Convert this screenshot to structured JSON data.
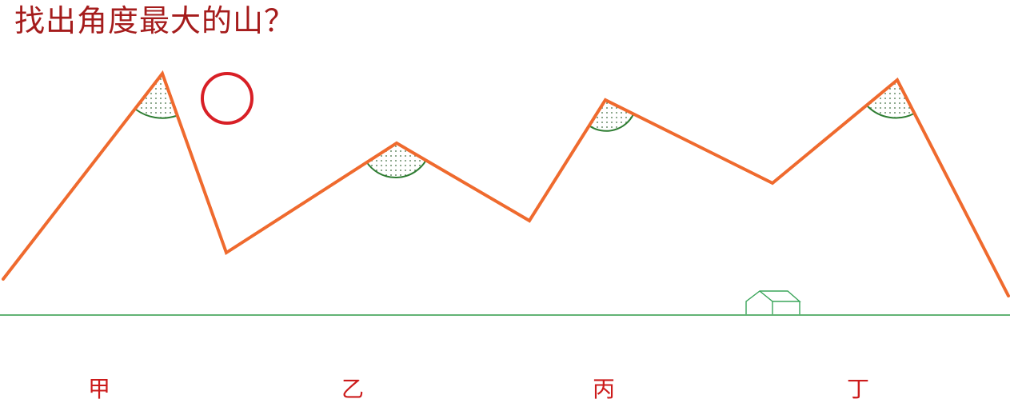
{
  "title": "找出角度最大的山？",
  "mountains": [
    {
      "label": "甲"
    },
    {
      "label": "乙"
    },
    {
      "label": "丙"
    },
    {
      "label": "丁"
    }
  ],
  "icons": [
    "sun-icon",
    "house-icon",
    "angle-marker-icon"
  ],
  "colors": {
    "title": "#a51c1c",
    "ridge": "#ef6a2e",
    "ground": "#2e9a46",
    "sun": "#d81f26",
    "angle_arc": "#2e7d32",
    "angle_dots": "#3d6b3d",
    "house": "#3aa55a",
    "labels": "#cc1b1b"
  }
}
